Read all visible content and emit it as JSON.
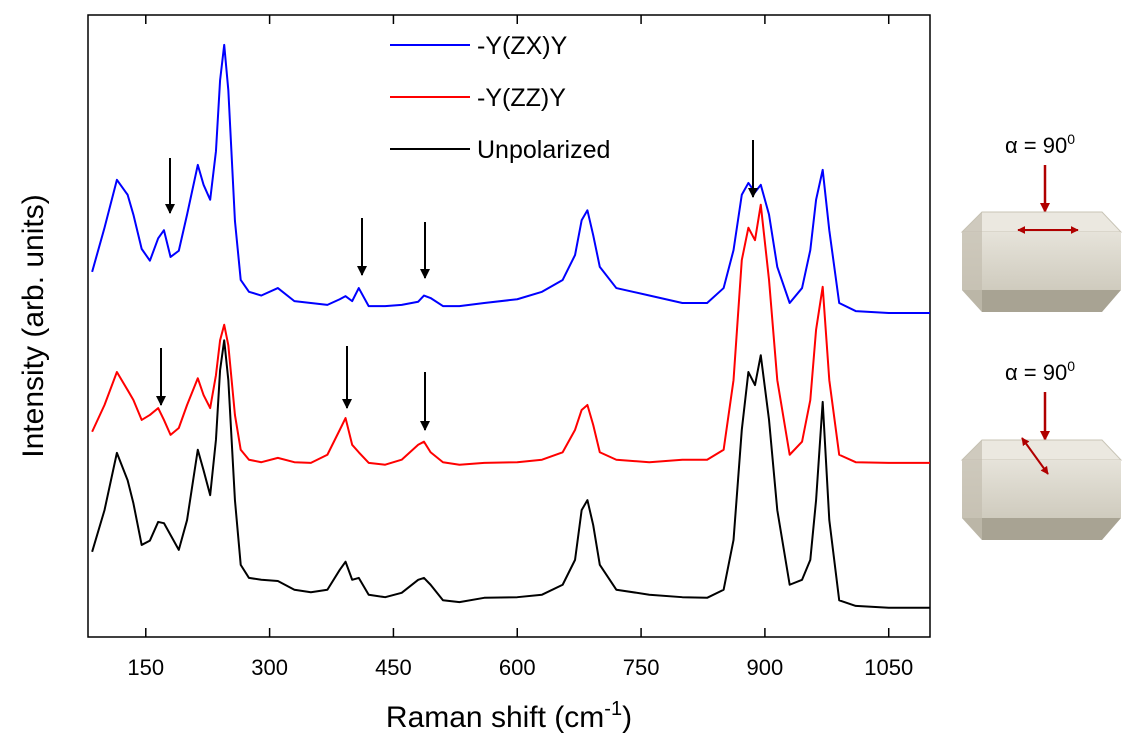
{
  "chart_data": {
    "type": "line",
    "xlabel": {
      "text": "Raman shift (cm",
      "sup": "-1",
      "close": ")"
    },
    "ylabel": "Intensity (arb. units)",
    "x": [
      85,
      100,
      115,
      128,
      135,
      145,
      155,
      165,
      172,
      180,
      190,
      200,
      213,
      220,
      228,
      235,
      240,
      245,
      250,
      258,
      265,
      275,
      290,
      310,
      330,
      350,
      370,
      385,
      392,
      400,
      408,
      420,
      440,
      460,
      480,
      487,
      495,
      510,
      530,
      560,
      600,
      630,
      655,
      670,
      678,
      685,
      692,
      700,
      720,
      760,
      800,
      830,
      850,
      862,
      872,
      880,
      888,
      895,
      905,
      915,
      930,
      945,
      955,
      962,
      970,
      978,
      990,
      1010,
      1050,
      1100
    ],
    "series": [
      {
        "name": "-Y(ZX)Y",
        "color": "#0000ff",
        "values": [
          58.7,
          65.8,
          73.5,
          71.1,
          67.9,
          62.4,
          60.5,
          64.1,
          65.4,
          61.1,
          62.1,
          67.9,
          75.9,
          72.7,
          70.3,
          78.1,
          89.5,
          95.2,
          87.9,
          66.9,
          57.4,
          55.5,
          54.9,
          56.1,
          54.0,
          53.7,
          53.4,
          54.3,
          54.8,
          54.0,
          56.1,
          53.2,
          53.2,
          53.4,
          53.9,
          54.9,
          54.5,
          53.2,
          53.2,
          53.7,
          54.3,
          55.5,
          57.4,
          61.4,
          67.0,
          68.6,
          64.6,
          59.5,
          56.1,
          54.9,
          53.7,
          53.7,
          56.1,
          62.2,
          71.1,
          73.0,
          71.5,
          72.7,
          67.9,
          59.5,
          53.7,
          56.1,
          62.2,
          70.3,
          75.1,
          65.4,
          53.7,
          52.4,
          52.1,
          52.1
        ]
      },
      {
        "name": "-Y(ZZ)Y",
        "color": "#ff0000",
        "values": [
          33.0,
          37.3,
          42.6,
          39.7,
          38.1,
          34.9,
          35.7,
          36.8,
          34.9,
          32.5,
          33.6,
          37.3,
          41.6,
          38.9,
          36.8,
          42.1,
          47.7,
          50.2,
          46.9,
          35.7,
          30.1,
          28.5,
          28.1,
          28.8,
          28.1,
          28.0,
          29.3,
          33.3,
          35.2,
          30.9,
          29.7,
          28.0,
          27.7,
          28.5,
          30.9,
          31.4,
          29.7,
          28.1,
          27.7,
          28.0,
          28.1,
          28.5,
          29.7,
          33.3,
          36.5,
          37.3,
          34.1,
          29.7,
          28.5,
          28.1,
          28.5,
          28.5,
          30.1,
          41.3,
          60.6,
          65.8,
          63.8,
          69.5,
          57.4,
          41.3,
          29.3,
          31.4,
          38.1,
          49.4,
          56.3,
          41.3,
          29.3,
          28.1,
          28.0,
          28.0
        ]
      },
      {
        "name": "Unpolarized",
        "color": "#000000",
        "values": [
          13.7,
          20.4,
          29.6,
          25.2,
          21.5,
          14.8,
          15.5,
          18.5,
          18.3,
          16.4,
          14.0,
          18.8,
          30.1,
          26.8,
          22.8,
          31.7,
          42.9,
          47.7,
          41.3,
          22.0,
          11.6,
          9.5,
          9.2,
          9.0,
          7.6,
          7.2,
          7.6,
          10.8,
          12.1,
          9.2,
          9.5,
          6.8,
          6.4,
          7.1,
          9.2,
          9.5,
          8.4,
          5.9,
          5.6,
          6.3,
          6.4,
          6.8,
          8.4,
          12.4,
          20.4,
          22.0,
          18.0,
          11.6,
          7.6,
          6.8,
          6.4,
          6.3,
          7.6,
          15.6,
          33.3,
          42.6,
          40.5,
          45.3,
          34.9,
          20.4,
          8.4,
          9.2,
          12.4,
          22.0,
          37.8,
          18.8,
          5.9,
          5.0,
          4.7,
          4.7
        ]
      }
    ],
    "xlim": [
      80,
      1100
    ],
    "xticks": [
      150,
      300,
      450,
      600,
      750,
      900,
      1050
    ],
    "ylim": [
      0,
      100
    ],
    "legend": "top-center",
    "insets": [
      {
        "label": "α = 90",
        "sup": "0"
      },
      {
        "label": "α = 90",
        "sup": "0"
      }
    ]
  }
}
